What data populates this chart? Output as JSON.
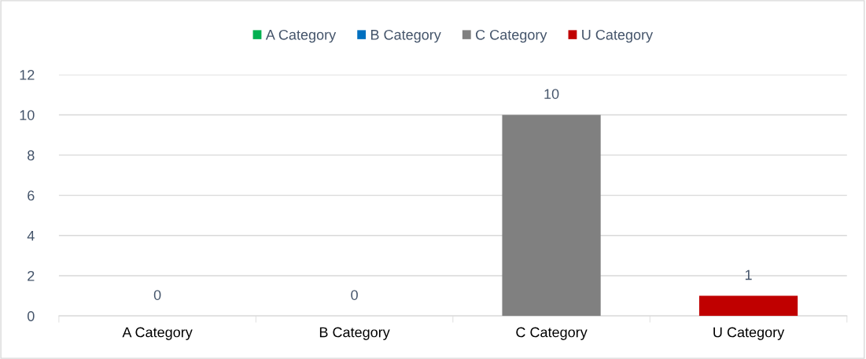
{
  "chart_data": {
    "type": "bar",
    "categories": [
      "A Category",
      "B Category",
      "C Category",
      "U Category"
    ],
    "series": [
      {
        "name": "A Category",
        "color": "#00b050",
        "values": [
          0,
          null,
          null,
          null
        ]
      },
      {
        "name": "B Category",
        "color": "#0070c0",
        "values": [
          null,
          0,
          null,
          null
        ]
      },
      {
        "name": "C Category",
        "color": "#808080",
        "values": [
          null,
          null,
          10,
          null
        ]
      },
      {
        "name": "U Category",
        "color": "#c00000",
        "values": [
          null,
          null,
          null,
          1
        ]
      }
    ],
    "ylim": [
      0,
      12
    ],
    "yticks": [
      0,
      2,
      4,
      6,
      8,
      10,
      12
    ],
    "grid": "y",
    "legend": "top",
    "data_labels": true
  }
}
